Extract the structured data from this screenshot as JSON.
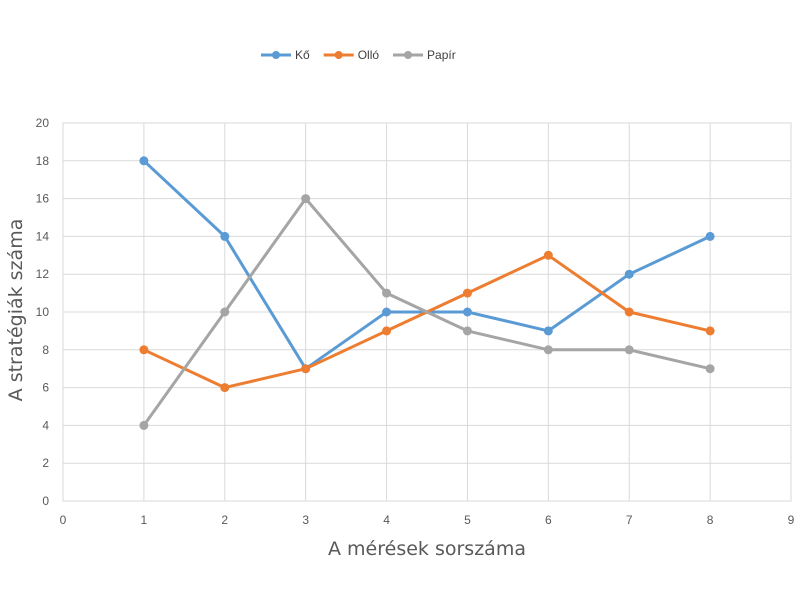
{
  "chart_data": {
    "type": "scatter",
    "mode": "lines+markers",
    "title": "",
    "xlabel": "A mérések sorszáma",
    "ylabel": "A stratégiák száma",
    "xlim": [
      0,
      9
    ],
    "ylim": [
      0,
      20
    ],
    "xticks": [
      "0",
      "1",
      "2",
      "3",
      "4",
      "5",
      "6",
      "7",
      "8",
      "9"
    ],
    "yticks": [
      "0",
      "2",
      "4",
      "6",
      "8",
      "10",
      "12",
      "14",
      "16",
      "18",
      "20"
    ],
    "grid": true,
    "legend_position": "top",
    "x": [
      1,
      2,
      3,
      4,
      5,
      6,
      7,
      8
    ],
    "series": [
      {
        "name": "Kő",
        "color": "#5b9bd5",
        "values": [
          18,
          14,
          7,
          10,
          10,
          9,
          12,
          14
        ]
      },
      {
        "name": "Olló",
        "color": "#ed7d31",
        "values": [
          8,
          6,
          7,
          9,
          11,
          13,
          10,
          9
        ]
      },
      {
        "name": "Papír",
        "color": "#a5a5a5",
        "values": [
          4,
          10,
          16,
          11,
          9,
          8,
          8,
          7
        ]
      }
    ]
  }
}
